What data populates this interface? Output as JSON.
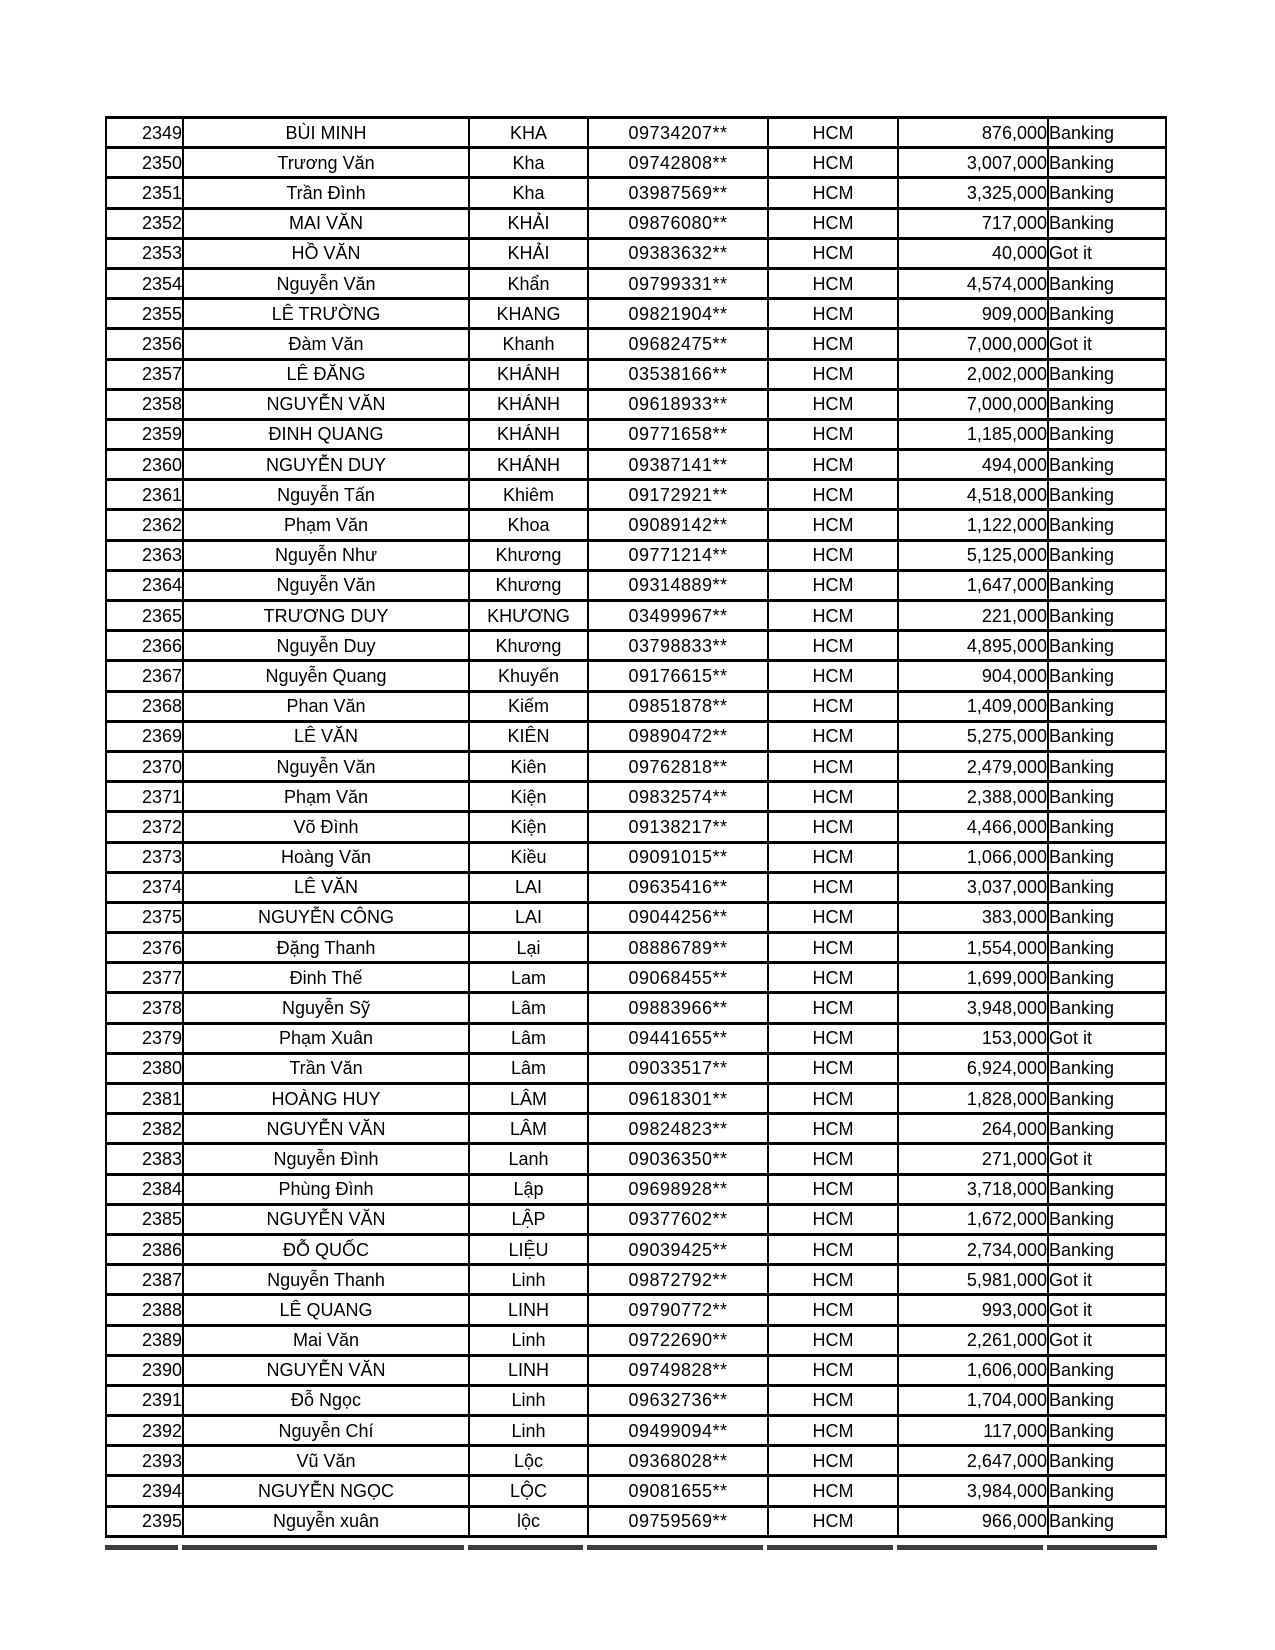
{
  "page": {
    "background": "#ffffff",
    "border_color": "#000000",
    "city_repeated_value": "HCM",
    "status_values": [
      "Banking",
      "Got it"
    ]
  },
  "table": {
    "rows": [
      [
        "2349",
        "BÙI MINH",
        "KHA",
        "09734207**",
        "HCM",
        "876,000",
        "Banking"
      ],
      [
        "2350",
        "Trương Văn",
        "Kha",
        "09742808**",
        "HCM",
        "3,007,000",
        "Banking"
      ],
      [
        "2351",
        "Trần Đình",
        "Kha",
        "03987569**",
        "HCM",
        "3,325,000",
        "Banking"
      ],
      [
        "2352",
        "MAI VĂN",
        "KHẢI",
        "09876080**",
        "HCM",
        "717,000",
        "Banking"
      ],
      [
        "2353",
        "HỒ VĂN",
        "KHẢI",
        "09383632**",
        "HCM",
        "40,000",
        "Got it"
      ],
      [
        "2354",
        "Nguyễn Văn",
        "Khẩn",
        "09799331**",
        "HCM",
        "4,574,000",
        "Banking"
      ],
      [
        "2355",
        "LÊ TRƯỜNG",
        "KHANG",
        "09821904**",
        "HCM",
        "909,000",
        "Banking"
      ],
      [
        "2356",
        "Đàm Văn",
        "Khanh",
        "09682475**",
        "HCM",
        "7,000,000",
        "Got it"
      ],
      [
        "2357",
        "LÊ ĐĂNG",
        "KHÁNH",
        "03538166**",
        "HCM",
        "2,002,000",
        "Banking"
      ],
      [
        "2358",
        "NGUYỄN VĂN",
        "KHÁNH",
        "09618933**",
        "HCM",
        "7,000,000",
        "Banking"
      ],
      [
        "2359",
        "ĐINH QUANG",
        "KHÁNH",
        "09771658**",
        "HCM",
        "1,185,000",
        "Banking"
      ],
      [
        "2360",
        "NGUYỄN DUY",
        "KHÁNH",
        "09387141**",
        "HCM",
        "494,000",
        "Banking"
      ],
      [
        "2361",
        "Nguyễn Tấn",
        "Khiêm",
        "09172921**",
        "HCM",
        "4,518,000",
        "Banking"
      ],
      [
        "2362",
        "Phạm Văn",
        "Khoa",
        "09089142**",
        "HCM",
        "1,122,000",
        "Banking"
      ],
      [
        "2363",
        "Nguyễn Như",
        "Khương",
        "09771214**",
        "HCM",
        "5,125,000",
        "Banking"
      ],
      [
        "2364",
        "Nguyễn Văn",
        "Khương",
        "09314889**",
        "HCM",
        "1,647,000",
        "Banking"
      ],
      [
        "2365",
        "TRƯƠNG DUY",
        "KHƯƠNG",
        "03499967**",
        "HCM",
        "221,000",
        "Banking"
      ],
      [
        "2366",
        "Nguyễn Duy",
        "Khương",
        "03798833**",
        "HCM",
        "4,895,000",
        "Banking"
      ],
      [
        "2367",
        "Nguyễn Quang",
        "Khuyến",
        "09176615**",
        "HCM",
        "904,000",
        "Banking"
      ],
      [
        "2368",
        "Phan Văn",
        "Kiếm",
        "09851878**",
        "HCM",
        "1,409,000",
        "Banking"
      ],
      [
        "2369",
        "LÊ VĂN",
        "KIÊN",
        "09890472**",
        "HCM",
        "5,275,000",
        "Banking"
      ],
      [
        "2370",
        "Nguyễn Văn",
        "Kiên",
        "09762818**",
        "HCM",
        "2,479,000",
        "Banking"
      ],
      [
        "2371",
        "Phạm Văn",
        "Kiện",
        "09832574**",
        "HCM",
        "2,388,000",
        "Banking"
      ],
      [
        "2372",
        "Võ Đình",
        "Kiện",
        "09138217**",
        "HCM",
        "4,466,000",
        "Banking"
      ],
      [
        "2373",
        "Hoàng Văn",
        "Kiều",
        "09091015**",
        "HCM",
        "1,066,000",
        "Banking"
      ],
      [
        "2374",
        "LÊ VĂN",
        "LAI",
        "09635416**",
        "HCM",
        "3,037,000",
        "Banking"
      ],
      [
        "2375",
        "NGUYỄN CÔNG",
        "LAI",
        "09044256**",
        "HCM",
        "383,000",
        "Banking"
      ],
      [
        "2376",
        "Đặng Thanh",
        "Lại",
        "08886789**",
        "HCM",
        "1,554,000",
        "Banking"
      ],
      [
        "2377",
        "Đinh Thế",
        "Lam",
        "09068455**",
        "HCM",
        "1,699,000",
        "Banking"
      ],
      [
        "2378",
        "Nguyễn Sỹ",
        "Lâm",
        "09883966**",
        "HCM",
        "3,948,000",
        "Banking"
      ],
      [
        "2379",
        "Phạm Xuân",
        "Lâm",
        "09441655**",
        "HCM",
        "153,000",
        "Got it"
      ],
      [
        "2380",
        "Trần Văn",
        "Lâm",
        "09033517**",
        "HCM",
        "6,924,000",
        "Banking"
      ],
      [
        "2381",
        "HOÀNG HUY",
        "LÂM",
        "09618301**",
        "HCM",
        "1,828,000",
        "Banking"
      ],
      [
        "2382",
        "NGUYỄN VĂN",
        "LÂM",
        "09824823**",
        "HCM",
        "264,000",
        "Banking"
      ],
      [
        "2383",
        "Nguyễn Đình",
        "Lanh",
        "09036350**",
        "HCM",
        "271,000",
        "Got it"
      ],
      [
        "2384",
        "Phùng Đình",
        "Lập",
        "09698928**",
        "HCM",
        "3,718,000",
        "Banking"
      ],
      [
        "2385",
        "NGUYỄN VĂN",
        "LẬP",
        "09377602**",
        "HCM",
        "1,672,000",
        "Banking"
      ],
      [
        "2386",
        "ĐỖ QUỐC",
        "LIỆU",
        "09039425**",
        "HCM",
        "2,734,000",
        "Banking"
      ],
      [
        "2387",
        "Nguyễn Thanh",
        "Linh",
        "09872792**",
        "HCM",
        "5,981,000",
        "Got it"
      ],
      [
        "2388",
        "LÊ QUANG",
        "LINH",
        "09790772**",
        "HCM",
        "993,000",
        "Got it"
      ],
      [
        "2389",
        "Mai Văn",
        "Linh",
        "09722690**",
        "HCM",
        "2,261,000",
        "Got it"
      ],
      [
        "2390",
        "NGUYỄN VĂN",
        "LINH",
        "09749828**",
        "HCM",
        "1,606,000",
        "Banking"
      ],
      [
        "2391",
        "Đỗ Ngọc",
        "Linh",
        "09632736**",
        "HCM",
        "1,704,000",
        "Banking"
      ],
      [
        "2392",
        "Nguyễn Chí",
        "Linh",
        "09499094**",
        "HCM",
        "117,000",
        "Banking"
      ],
      [
        "2393",
        "Vũ Văn",
        "Lộc",
        "09368028**",
        "HCM",
        "2,647,000",
        "Banking"
      ],
      [
        "2394",
        "NGUYỄN NGỌC",
        "LỘC",
        "09081655**",
        "HCM",
        "3,984,000",
        "Banking"
      ],
      [
        "2395",
        "Nguyễn xuân",
        "lộc",
        "09759569**",
        "HCM",
        "966,000",
        "Banking"
      ]
    ]
  }
}
